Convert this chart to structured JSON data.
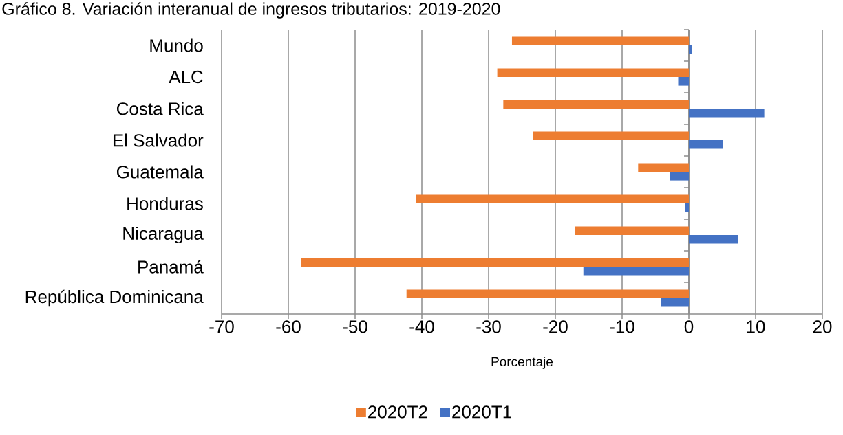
{
  "chart_data": {
    "type": "bar",
    "orientation": "horizontal",
    "title": "Gráfico 8. Variación interanual de ingresos tributarios: 2019-2020",
    "xlabel": "Porcentaje",
    "categories": [
      "Mundo",
      "ALC",
      "Costa Rica",
      "El Salvador",
      "Guatemala",
      "Honduras",
      "Nicaragua",
      "Panamá",
      "República Dominicana"
    ],
    "series": [
      {
        "name": "2020T2",
        "color": "#ed7d31",
        "values": [
          -26.5,
          -28.7,
          -27.8,
          -23.4,
          -7.6,
          -40.9,
          -17.1,
          -58.1,
          -42.3
        ]
      },
      {
        "name": "2020T1",
        "color": "#4472c4",
        "values": [
          0.5,
          -1.6,
          11.3,
          5.1,
          -2.8,
          -0.6,
          7.4,
          -15.8,
          -4.2
        ]
      }
    ],
    "xlim": [
      -70,
      20
    ],
    "xticks": [
      -70,
      -60,
      -50,
      -40,
      -30,
      -20,
      -10,
      0,
      10,
      20
    ],
    "grid": "x",
    "legend": "bottom"
  }
}
